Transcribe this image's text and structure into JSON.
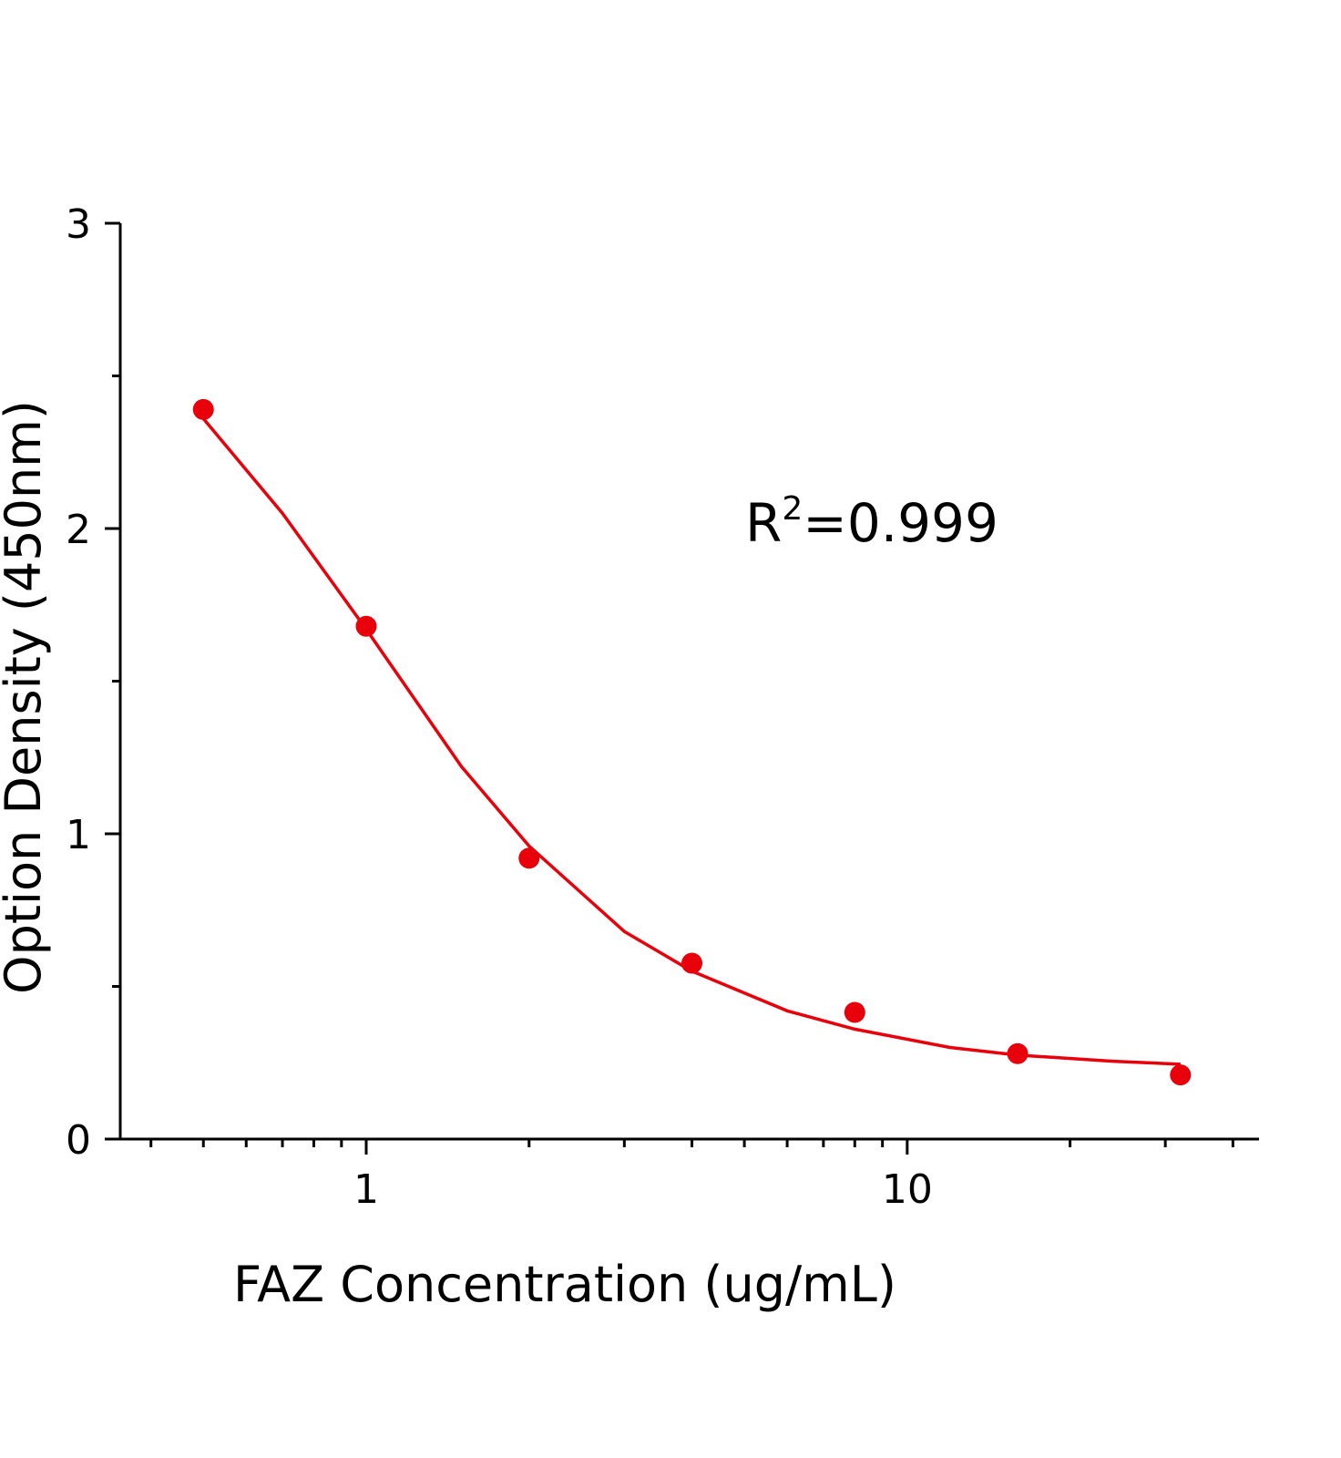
{
  "chart_data": {
    "type": "scatter",
    "x_label": "FAZ Concentration (ug/mL)",
    "y_label": "Option Density (450nm)",
    "annotation": [
      "R",
      "2",
      "=0.999"
    ],
    "color": "#e8000b",
    "xscale": "log",
    "points": {
      "x": [
        0.5,
        1,
        2,
        4,
        8,
        16,
        32
      ],
      "values": [
        2.39,
        1.68,
        0.92,
        0.576,
        0.415,
        0.28,
        0.21
      ]
    },
    "fit": {
      "x": [
        0.5,
        0.7,
        1,
        1.5,
        2,
        3,
        4,
        6,
        8,
        12,
        16,
        24,
        32
      ],
      "values": [
        2.36,
        2.05,
        1.67,
        1.22,
        0.96,
        0.68,
        0.55,
        0.42,
        0.36,
        0.3,
        0.275,
        0.255,
        0.245
      ]
    },
    "xlim": [
      0.351,
      44.7
    ],
    "xticks": [
      1,
      10
    ],
    "xminorticks": [
      0.4,
      0.5,
      0.6,
      0.7,
      0.8,
      0.9,
      2,
      3,
      4,
      5,
      6,
      7,
      8,
      9,
      20,
      30,
      40
    ],
    "ylim": [
      0,
      3
    ],
    "yticks": [
      0,
      1,
      2,
      3
    ],
    "yminorticks": [
      0.5,
      1.5,
      2.5
    ]
  }
}
